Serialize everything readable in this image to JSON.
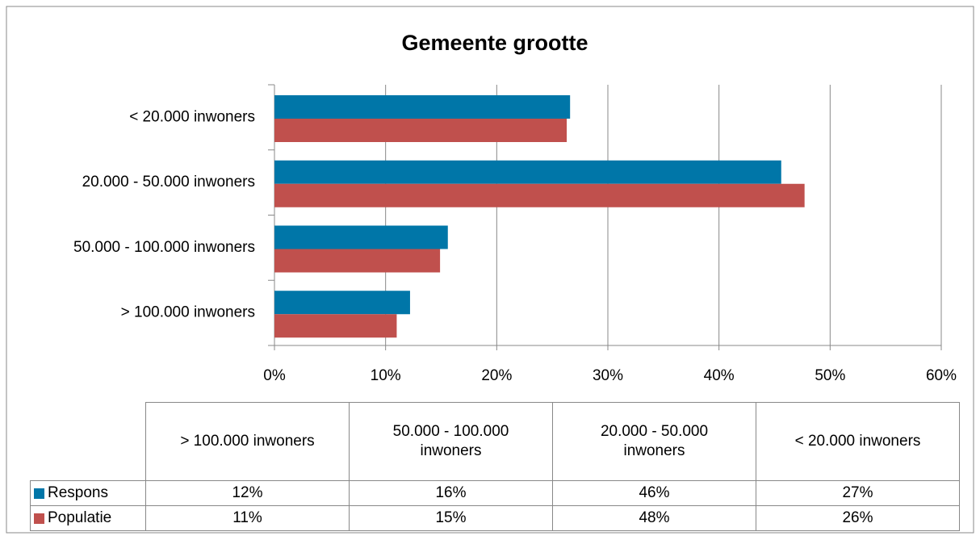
{
  "chart_data": {
    "type": "bar",
    "orientation": "horizontal",
    "title": "Gemeente grootte",
    "categories": [
      "> 100.000 inwoners",
      "50.000 - 100.000 inwoners",
      "20.000 - 50.000 inwoners",
      "< 20.000 inwoners"
    ],
    "series": [
      {
        "name": "Respons",
        "color": "#0076a8",
        "values": [
          12.2,
          15.6,
          45.6,
          26.6
        ],
        "value_labels": [
          "12%",
          "16%",
          "46%",
          "27%"
        ]
      },
      {
        "name": "Populatie",
        "color": "#c0504d",
        "values": [
          11.0,
          14.9,
          47.7,
          26.3
        ],
        "value_labels": [
          "11%",
          "15%",
          "48%",
          "26%"
        ]
      }
    ],
    "xlim": [
      0,
      60
    ],
    "xticks": [
      {
        "value": 0,
        "label": "0%"
      },
      {
        "value": 10,
        "label": "10%"
      },
      {
        "value": 20,
        "label": "20%"
      },
      {
        "value": 30,
        "label": "30%"
      },
      {
        "value": 40,
        "label": "40%"
      },
      {
        "value": 50,
        "label": "50%"
      },
      {
        "value": 60,
        "label": "60%"
      }
    ],
    "grid": true,
    "data_table": true
  }
}
